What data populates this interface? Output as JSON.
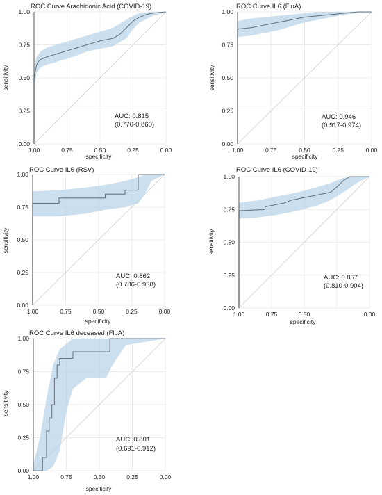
{
  "chart_data": [
    {
      "type": "line",
      "title": "ROC Curve Arachidonic  Acid (COVID-19)",
      "xlabel": "specificity",
      "ylabel": "sensitivity",
      "x_ticks": [
        "1.00",
        "0.75",
        "0.50",
        "0.25",
        "0.00"
      ],
      "y_ticks": [
        "0.00",
        "0.25",
        "0.50",
        "0.75",
        "1.00"
      ],
      "xlim": [
        1.0,
        0.0
      ],
      "ylim": [
        0.0,
        1.0
      ],
      "auc_label": "AUC: 0.815",
      "ci_label": "(0.770-0.860)",
      "curve": {
        "specificity": [
          1.0,
          1.0,
          0.99,
          0.98,
          0.97,
          0.95,
          0.9,
          0.8,
          0.7,
          0.6,
          0.5,
          0.45,
          0.4,
          0.35,
          0.3,
          0.25,
          0.2,
          0.15,
          0.1,
          0.05,
          0.0
        ],
        "sensitivity": [
          0.0,
          0.5,
          0.55,
          0.6,
          0.62,
          0.64,
          0.66,
          0.69,
          0.72,
          0.75,
          0.78,
          0.79,
          0.8,
          0.83,
          0.88,
          0.93,
          0.96,
          0.98,
          0.99,
          0.995,
          1.0
        ]
      },
      "ci_band": {
        "specificity": [
          1.0,
          0.99,
          0.98,
          0.95,
          0.9,
          0.8,
          0.7,
          0.6,
          0.5,
          0.4,
          0.3,
          0.25,
          0.2,
          0.1,
          0.0
        ],
        "upper": [
          0.6,
          0.62,
          0.66,
          0.7,
          0.73,
          0.76,
          0.79,
          0.82,
          0.85,
          0.88,
          0.94,
          0.97,
          0.99,
          1.0,
          1.0
        ],
        "lower": [
          0.43,
          0.48,
          0.54,
          0.58,
          0.6,
          0.63,
          0.66,
          0.7,
          0.72,
          0.74,
          0.8,
          0.87,
          0.92,
          0.97,
          1.0
        ]
      }
    },
    {
      "type": "line",
      "title": "ROC Curve IL6 (FluA)",
      "xlabel": "specificity",
      "ylabel": "sensitivity",
      "x_ticks": [
        "1.00",
        "0.75",
        "0.50",
        "0.25",
        "0.00"
      ],
      "y_ticks": [
        "0.00",
        "0.25",
        "0.50",
        "0.75",
        "1.00"
      ],
      "xlim": [
        1.0,
        0.0
      ],
      "ylim": [
        0.0,
        1.0
      ],
      "auc_label": "AUC: 0.946",
      "ci_label": "(0.917-0.974)",
      "curve": {
        "specificity": [
          1.0,
          1.0,
          0.9,
          0.8,
          0.7,
          0.6,
          0.5,
          0.4,
          0.3,
          0.2,
          0.1,
          0.0
        ],
        "sensitivity": [
          0.0,
          0.87,
          0.88,
          0.9,
          0.92,
          0.94,
          0.96,
          0.97,
          0.98,
          0.99,
          1.0,
          1.0
        ]
      },
      "ci_band": {
        "specificity": [
          1.0,
          0.9,
          0.8,
          0.7,
          0.6,
          0.5,
          0.4,
          0.3,
          0.2,
          0.1,
          0.0
        ],
        "upper": [
          0.93,
          0.95,
          0.96,
          0.97,
          0.98,
          0.99,
          1.0,
          1.0,
          1.0,
          1.0,
          1.0
        ],
        "lower": [
          0.81,
          0.82,
          0.84,
          0.86,
          0.89,
          0.92,
          0.94,
          0.96,
          0.98,
          0.99,
          1.0
        ]
      }
    },
    {
      "type": "line",
      "title": "ROC Curve IL6 (RSV)",
      "xlabel": "specificity",
      "ylabel": "sensitivity",
      "x_ticks": [
        "1.00",
        "0.75",
        "0.50",
        "0.25",
        "0.00"
      ],
      "y_ticks": [
        "0.00",
        "0.25",
        "0.50",
        "0.75",
        "1.00"
      ],
      "xlim": [
        1.0,
        0.0
      ],
      "ylim": [
        0.0,
        1.0
      ],
      "auc_label": "AUC: 0.862",
      "ci_label": "(0.786-0.938)",
      "curve": {
        "specificity": [
          1.0,
          1.0,
          0.8,
          0.8,
          0.45,
          0.45,
          0.3,
          0.3,
          0.2,
          0.2,
          0.0
        ],
        "sensitivity": [
          0.0,
          0.78,
          0.78,
          0.82,
          0.82,
          0.85,
          0.85,
          0.88,
          0.88,
          1.0,
          1.0
        ]
      },
      "ci_band": {
        "specificity": [
          1.0,
          0.8,
          0.6,
          0.45,
          0.3,
          0.2,
          0.15,
          0.1,
          0.0
        ],
        "upper": [
          0.87,
          0.88,
          0.9,
          0.92,
          0.95,
          0.98,
          1.0,
          1.0,
          1.0
        ],
        "lower": [
          0.68,
          0.68,
          0.7,
          0.73,
          0.75,
          0.78,
          0.85,
          0.95,
          1.0
        ]
      }
    },
    {
      "type": "line",
      "title": "ROC Curve IL6 (COVID-19)",
      "xlabel": "specificity",
      "ylabel": "sensitivity",
      "x_ticks": [
        "1.00",
        "0.75",
        "0.50",
        "0.00"
      ],
      "x_tick_values": [
        1.0,
        0.75,
        0.5,
        0.0
      ],
      "y_ticks": [
        "0.00",
        "0.25",
        "0.50",
        "0.75",
        "1.00"
      ],
      "xlim": [
        1.0,
        0.0
      ],
      "ylim": [
        0.0,
        1.0
      ],
      "auc_label": "AUC: 0.857",
      "ci_label": "(0.810-0.904)",
      "curve": {
        "specificity": [
          1.0,
          1.0,
          0.8,
          0.8,
          0.65,
          0.6,
          0.5,
          0.4,
          0.3,
          0.25,
          0.2,
          0.15,
          0.0
        ],
        "sensitivity": [
          0.0,
          0.74,
          0.75,
          0.77,
          0.8,
          0.82,
          0.84,
          0.86,
          0.88,
          0.92,
          0.97,
          1.0,
          1.0
        ]
      },
      "ci_band": {
        "specificity": [
          1.0,
          0.85,
          0.7,
          0.55,
          0.4,
          0.3,
          0.2,
          0.1,
          0.0
        ],
        "upper": [
          0.8,
          0.82,
          0.85,
          0.88,
          0.92,
          0.95,
          0.99,
          1.0,
          1.0
        ],
        "lower": [
          0.68,
          0.69,
          0.71,
          0.74,
          0.78,
          0.82,
          0.88,
          0.95,
          1.0
        ]
      }
    },
    {
      "type": "line",
      "title": "ROC Curve IL6 deceased (FluA)",
      "xlabel": "specificity",
      "ylabel": "sensitivity",
      "x_ticks": [
        "1.00",
        "0.75",
        "0.50",
        "0.25",
        "0.00"
      ],
      "y_ticks": [
        "0.00",
        "0.25",
        "0.50",
        "0.75",
        "1.00"
      ],
      "xlim": [
        1.0,
        0.0
      ],
      "ylim": [
        0.0,
        1.0
      ],
      "auc_label": "AUC: 0.801",
      "ci_label": "(0.691-0.912)",
      "curve": {
        "specificity": [
          1.0,
          0.93,
          0.93,
          0.9,
          0.9,
          0.88,
          0.88,
          0.86,
          0.86,
          0.84,
          0.84,
          0.82,
          0.82,
          0.8,
          0.8,
          0.7,
          0.7,
          0.42,
          0.42,
          0.0
        ],
        "sensitivity": [
          0.0,
          0.0,
          0.1,
          0.1,
          0.3,
          0.3,
          0.4,
          0.4,
          0.5,
          0.5,
          0.7,
          0.7,
          0.8,
          0.8,
          0.85,
          0.85,
          0.9,
          0.9,
          1.0,
          1.0
        ]
      },
      "ci_band": {
        "specificity": [
          1.0,
          0.95,
          0.9,
          0.85,
          0.8,
          0.75,
          0.7,
          0.6,
          0.5,
          0.45,
          0.4,
          0.3,
          0.0
        ],
        "upper": [
          0.05,
          0.25,
          0.55,
          0.8,
          0.92,
          0.96,
          1.0,
          1.0,
          1.0,
          1.0,
          1.0,
          1.0,
          1.0
        ],
        "lower": [
          0.0,
          0.0,
          0.0,
          0.03,
          0.15,
          0.45,
          0.62,
          0.7,
          0.7,
          0.7,
          0.8,
          0.95,
          1.0
        ]
      }
    }
  ]
}
